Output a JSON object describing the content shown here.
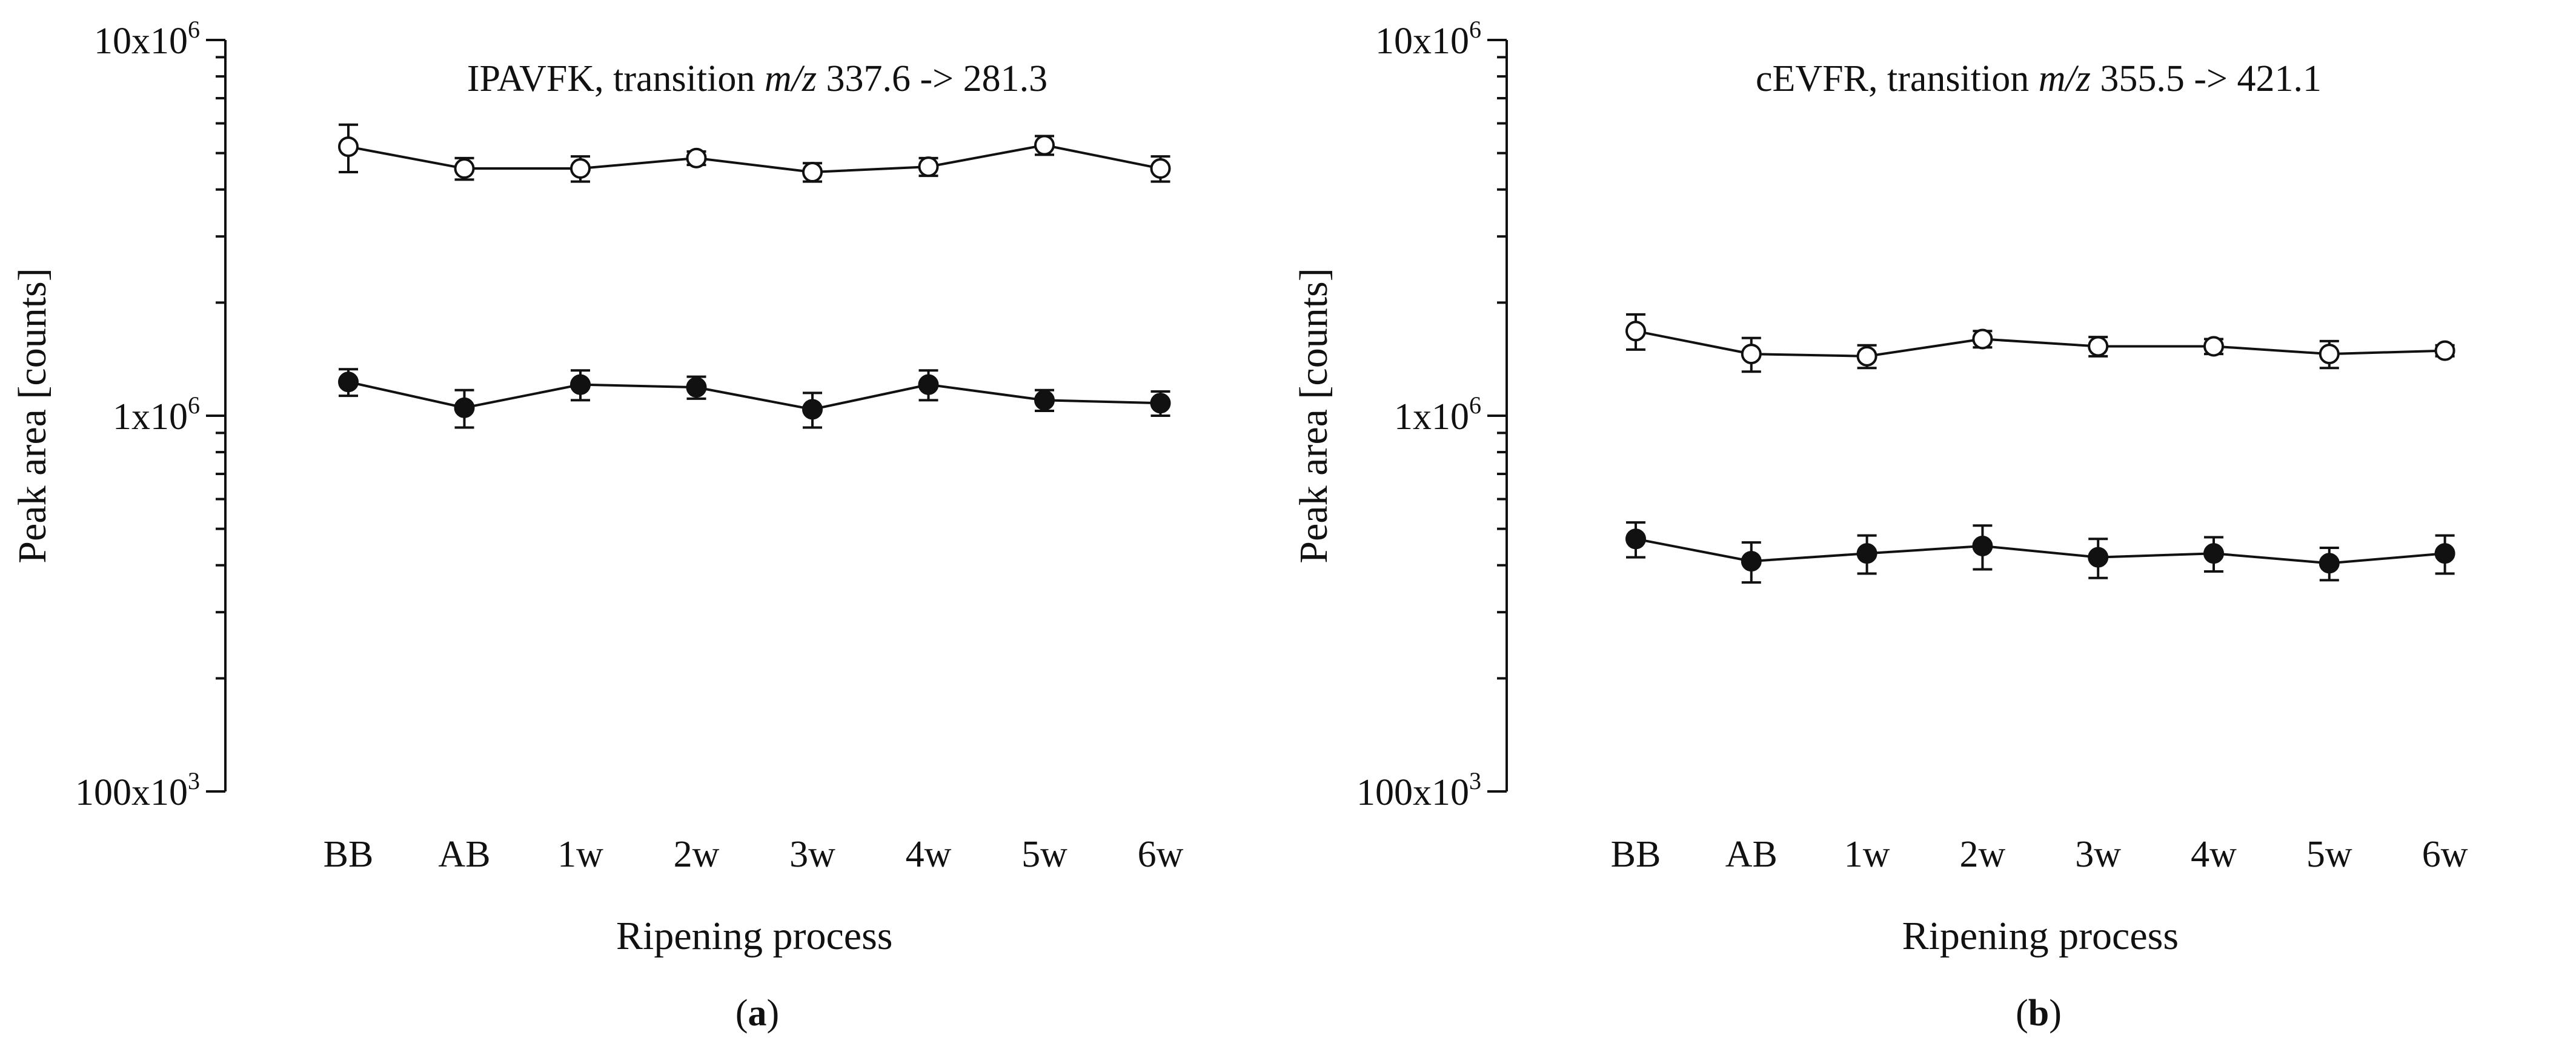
{
  "chart_data": [
    {
      "panel_label": "(a)",
      "panel_label_parts": [
        "(",
        "a",
        ")"
      ],
      "type": "line",
      "scale": "log",
      "title_parts": [
        "IPAVFK, transition ",
        "m/z",
        " 337.6 -> 281.3"
      ],
      "xlabel": "Ripening process",
      "ylabel": "Peak area [counts]",
      "ylim": [
        100000,
        10000000
      ],
      "y_ticks": [
        {
          "value": 100000,
          "label_base": "100x10",
          "label_exp": "3"
        },
        {
          "value": 1000000,
          "label_base": "1x10",
          "label_exp": "6"
        },
        {
          "value": 10000000,
          "label_base": "10x10",
          "label_exp": "6"
        }
      ],
      "categories": [
        "BB",
        "AB",
        "1w",
        "2w",
        "3w",
        "4w",
        "5w",
        "6w"
      ],
      "series": [
        {
          "name": "open circles",
          "marker": "open",
          "values": [
            5200000,
            4550000,
            4550000,
            4850000,
            4450000,
            4600000,
            5250000,
            4550000
          ],
          "errors": [
            750000,
            300000,
            350000,
            200000,
            250000,
            250000,
            300000,
            350000
          ]
        },
        {
          "name": "filled circles",
          "marker": "filled",
          "values": [
            1230000,
            1050000,
            1210000,
            1190000,
            1040000,
            1210000,
            1100000,
            1080000
          ],
          "errors": [
            100000,
            120000,
            110000,
            80000,
            110000,
            110000,
            70000,
            80000
          ]
        }
      ]
    },
    {
      "panel_label": "(b)",
      "panel_label_parts": [
        "(",
        "b",
        ")"
      ],
      "type": "line",
      "scale": "log",
      "title_parts": [
        "cEVFR, transition ",
        "m/z",
        " 355.5 -> 421.1"
      ],
      "xlabel": "Ripening process",
      "ylabel": "Peak area [counts]",
      "ylim": [
        100000,
        10000000
      ],
      "y_ticks": [
        {
          "value": 100000,
          "label_base": "100x10",
          "label_exp": "3"
        },
        {
          "value": 1000000,
          "label_base": "1x10",
          "label_exp": "6"
        },
        {
          "value": 10000000,
          "label_base": "10x10",
          "label_exp": "6"
        }
      ],
      "categories": [
        "BB",
        "AB",
        "1w",
        "2w",
        "3w",
        "4w",
        "5w",
        "6w"
      ],
      "series": [
        {
          "name": "open circles",
          "marker": "open",
          "values": [
            1680000,
            1460000,
            1440000,
            1600000,
            1530000,
            1530000,
            1460000,
            1490000
          ],
          "errors": [
            180000,
            150000,
            100000,
            80000,
            90000,
            70000,
            120000,
            50000
          ]
        },
        {
          "name": "filled circles",
          "marker": "filled",
          "values": [
            470000,
            410000,
            430000,
            450000,
            420000,
            430000,
            405000,
            430000
          ],
          "errors": [
            50000,
            50000,
            50000,
            60000,
            50000,
            45000,
            40000,
            50000
          ]
        }
      ]
    }
  ]
}
